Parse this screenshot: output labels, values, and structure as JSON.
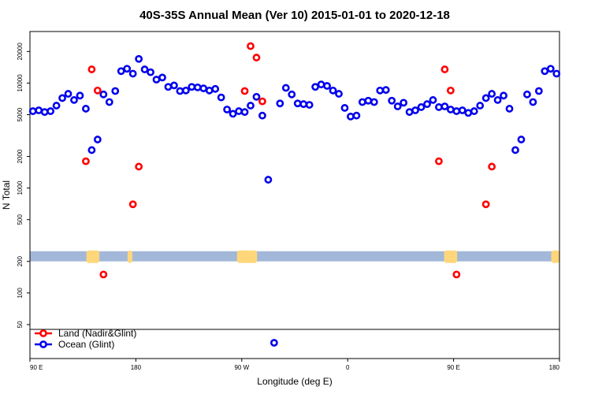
{
  "chart_data": {
    "type": "scatter",
    "title": "40S-35S Annual Mean (Ver 10)   2015-01-01 to 2020-12-18",
    "xlabel": "Longitude (deg E)",
    "ylabel": "N Total",
    "y_scale": "log",
    "x_ticks": [
      {
        "lon": 90,
        "label": "90 E"
      },
      {
        "lon": 180,
        "label": "180"
      },
      {
        "lon": 270,
        "label": "90 W"
      },
      {
        "lon": 360,
        "label": "0"
      },
      {
        "lon": 450,
        "label": "90 E"
      },
      {
        "lon": 540,
        "label": "180"
      }
    ],
    "y_ticks_upper": [
      {
        "value": 500,
        "label": "500"
      },
      {
        "value": 1000,
        "label": "1000"
      },
      {
        "value": 2000,
        "label": "2000"
      },
      {
        "value": 5000,
        "label": "5000"
      },
      {
        "value": 10000,
        "label": "10000"
      },
      {
        "value": 20000,
        "label": "20000"
      }
    ],
    "y_ticks_lower": [
      {
        "value": 50,
        "label": "50"
      },
      {
        "value": 100,
        "label": "100"
      },
      {
        "value": 200,
        "label": "200"
      }
    ],
    "legend": [
      {
        "name": "Land (Nadir&Glint)",
        "color": "#ff0000"
      },
      {
        "name": "Ocean (Glint)",
        "color": "#0000ee"
      }
    ],
    "series": [
      {
        "name": "Ocean (Glint)",
        "color": "#0000ee",
        "x": [
          92.5,
          97.5,
          102.5,
          107.5,
          112.5,
          117.5,
          122.5,
          127.5,
          132.5,
          137.5,
          142.5,
          147.5,
          152.5,
          157.5,
          162.5,
          167.5,
          172.5,
          177.5,
          182.5,
          187.5,
          192.5,
          197.5,
          202.5,
          207.5,
          212.5,
          217.5,
          222.5,
          227.5,
          232.5,
          237.5,
          242.5,
          247.5,
          252.5,
          257.5,
          262.5,
          267.5,
          272.5,
          277.5,
          282.5,
          287.5,
          292.5,
          297.5,
          302.5,
          307.5,
          312.5,
          317.5,
          322.5,
          327.5,
          332.5,
          337.5,
          342.5,
          347.5,
          352.5,
          357.5,
          362.5,
          367.5,
          372.5,
          377.5,
          382.5,
          387.5,
          392.5,
          397.5,
          402.5,
          407.5,
          412.5,
          417.5,
          422.5,
          427.5,
          432.5,
          437.5,
          442.5,
          447.5,
          452.5,
          457.5,
          462.5,
          467.5,
          472.5,
          477.5,
          482.5,
          487.5,
          492.5,
          497.5,
          502.5,
          507.5,
          512.5,
          517.5,
          522.5,
          527.5,
          532.5,
          537.5
        ],
        "y": [
          5400,
          5500,
          5300,
          5400,
          6100,
          7200,
          7900,
          6900,
          7600,
          5700,
          2300,
          2900,
          7800,
          6600,
          8400,
          13000,
          13700,
          12300,
          17000,
          13500,
          12700,
          10800,
          11300,
          9200,
          9500,
          8400,
          8500,
          9200,
          9100,
          8900,
          8500,
          8800,
          7300,
          5600,
          5100,
          5400,
          5300,
          6100,
          7400,
          4900,
          1200,
          30,
          6400,
          9000,
          7800,
          6400,
          6300,
          6200,
          9200,
          9700,
          9400,
          8500,
          7900,
          5800,
          4800,
          4900,
          6600,
          6800,
          6600,
          8500,
          8600,
          6800,
          6000,
          6500,
          5300,
          5500,
          5900,
          6300,
          6900,
          5900,
          6000,
          5600,
          5400,
          5500,
          5200,
          5400,
          6100,
          7200,
          7900,
          6900,
          7600,
          5700,
          2300,
          2900,
          7800,
          6600,
          8400,
          13000,
          13700,
          12300
        ]
      },
      {
        "name": "Land (Nadir&Glint)",
        "color": "#ff0000",
        "x": [
          137.5,
          142.5,
          147.5,
          152.5,
          177.5,
          182.5,
          272.5,
          277.5,
          282.5,
          287.5,
          437.5,
          442.5,
          447.5,
          452.5,
          477.5,
          482.5
        ],
        "y": [
          1800,
          13500,
          8500,
          150,
          700,
          1600,
          8400,
          22500,
          17500,
          6700,
          1800,
          13500,
          8500,
          150,
          700,
          1600
        ]
      }
    ],
    "land_mask_band": {
      "value_range": [
        200,
        250
      ],
      "ocean_color": "#a3b8d9",
      "land_color": "#ffd77a",
      "land_lon_ranges": [
        [
          138,
          149
        ],
        [
          173,
          177
        ],
        [
          266,
          283
        ],
        [
          442,
          453
        ],
        [
          533,
          540
        ]
      ]
    }
  }
}
